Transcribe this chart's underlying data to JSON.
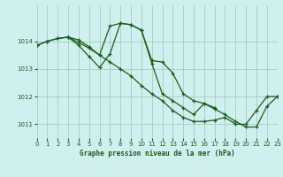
{
  "title": "Graphe pression niveau de la mer (hPa)",
  "background_color": "#cff0ee",
  "grid_color": "#aaccbb",
  "line_color": "#1a5c1a",
  "xlim": [
    0,
    23
  ],
  "ylim": [
    1010.5,
    1015.3
  ],
  "yticks": [
    1011,
    1012,
    1013,
    1014
  ],
  "xticks": [
    0,
    1,
    2,
    3,
    4,
    5,
    6,
    7,
    8,
    9,
    10,
    11,
    12,
    13,
    14,
    15,
    16,
    17,
    18,
    19,
    20,
    21,
    22,
    23
  ],
  "series1_x": [
    0,
    1,
    2,
    3,
    4,
    5,
    6,
    7,
    8,
    9,
    10,
    11,
    12,
    13,
    14,
    15,
    16,
    17,
    18,
    19,
    20,
    21,
    22,
    23
  ],
  "series1_y": [
    1013.85,
    1014.0,
    1014.1,
    1014.15,
    1013.95,
    1013.75,
    1013.5,
    1013.25,
    1013.0,
    1012.75,
    1012.4,
    1012.1,
    1011.85,
    1011.5,
    1011.25,
    1011.1,
    1011.1,
    1011.15,
    1011.25,
    1011.0,
    1011.0,
    1011.5,
    1012.0,
    1012.0
  ],
  "series2_x": [
    0,
    1,
    2,
    3,
    4,
    5,
    6,
    7,
    8,
    9,
    10,
    11,
    12,
    13,
    14,
    15,
    16,
    17
  ],
  "series2_y": [
    1013.85,
    1014.0,
    1014.1,
    1014.15,
    1014.05,
    1013.8,
    1013.5,
    1014.55,
    1014.65,
    1014.6,
    1014.4,
    1013.3,
    1013.25,
    1012.85,
    1012.1,
    1011.85,
    1011.75,
    1011.6
  ],
  "series3_x": [
    3,
    4,
    5,
    6,
    7,
    8,
    9,
    10,
    11,
    12,
    13,
    14,
    15,
    16,
    17,
    18,
    19,
    20,
    21,
    22,
    23
  ],
  "series3_y": [
    1014.15,
    1013.85,
    1013.45,
    1013.05,
    1013.55,
    1014.65,
    1014.6,
    1014.4,
    1013.2,
    1012.1,
    1011.85,
    1011.6,
    1011.35,
    1011.75,
    1011.55,
    1011.35,
    1011.1,
    1010.9,
    1010.9,
    1011.65,
    1012.0
  ]
}
